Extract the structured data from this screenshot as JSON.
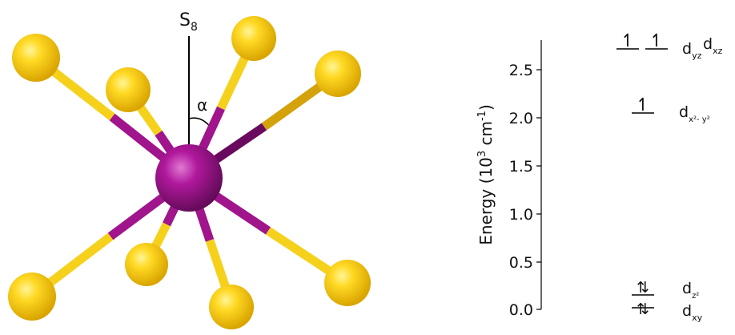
{
  "molecule": {
    "axis_label": "S",
    "axis_label_sub": "8",
    "angle_label": "α",
    "colors": {
      "metal": "#a0148c",
      "ligand": "#ffd21c",
      "bond_metal": "#a0148c",
      "bond_ligand": "#f6d11c"
    }
  },
  "energy_diagram": {
    "y_axis": {
      "label_prefix": "Energy (10",
      "label_exp": "3",
      "label_unit": " cm",
      "label_unit_exp": "-1",
      "label_suffix": ")",
      "ticks": [
        "0.0",
        "0.5",
        "1.0",
        "1.5",
        "2.0",
        "2.5"
      ]
    },
    "orbitals": {
      "dyz": {
        "base": "d",
        "sub": "yz",
        "energy": 2.7,
        "electrons": "up"
      },
      "dxz": {
        "base": "d",
        "sub": "xz",
        "energy": 2.7,
        "electrons": "up"
      },
      "dx2y2": {
        "base": "d",
        "sub": "x²- y²",
        "energy": 2.05,
        "electrons": "up"
      },
      "dz2": {
        "base": "d",
        "sub": "z²",
        "energy": 0.15,
        "electrons": "up-down"
      },
      "dxy": {
        "base": "d",
        "sub": "xy",
        "energy": 0.0,
        "electrons": "up-down"
      }
    }
  }
}
